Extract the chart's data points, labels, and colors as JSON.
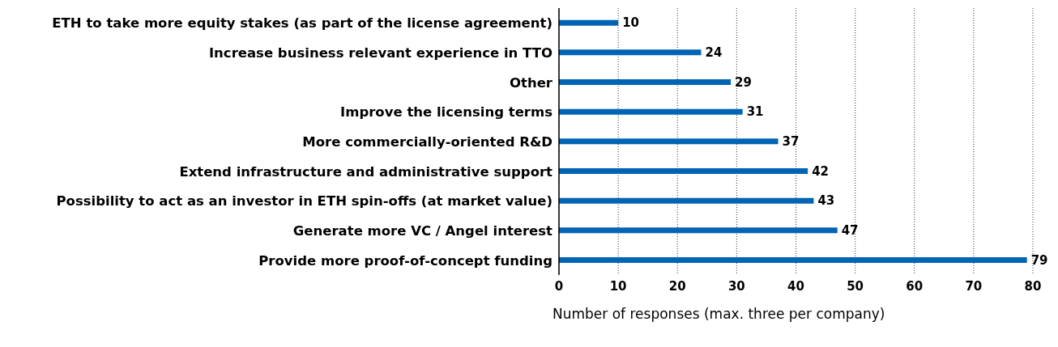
{
  "chart_data": {
    "type": "bar",
    "orientation": "horizontal",
    "xlabel": "Number of responses (max. three per company)",
    "categories": [
      "ETH to take more equity stakes (as part of the license agreement)",
      "Increase business relevant experience in TTO",
      "Other",
      "Improve the licensing terms",
      "More commercially-oriented R&D",
      "Extend infrastructure and administrative support",
      "Possibility to act as an investor in ETH spin-offs (at market value)",
      "Generate more VC / Angel interest",
      "Provide more proof-of-concept funding"
    ],
    "values": [
      10,
      24,
      29,
      31,
      37,
      42,
      43,
      47,
      79
    ],
    "color": "#0064b4",
    "xlim": [
      0,
      80
    ],
    "xticks": [
      0,
      10,
      20,
      30,
      40,
      50,
      60,
      70,
      80
    ],
    "grid": "x",
    "data_labels": true,
    "legend": false
  }
}
